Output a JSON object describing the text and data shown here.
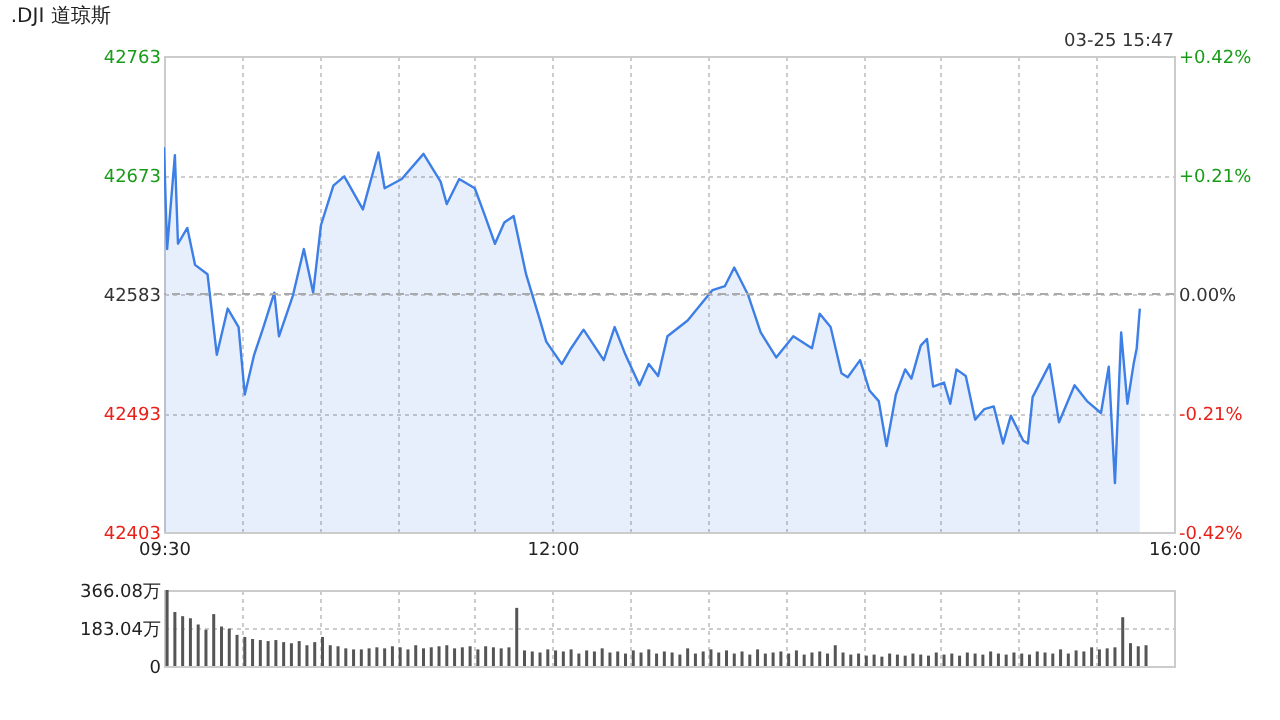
{
  "chart_data": [
    {
      "type": "area",
      "title": ".DJI 道琼斯",
      "annotations": [
        "03-25 15:47"
      ],
      "x": [
        9.5,
        9.52,
        9.57,
        9.59,
        9.65,
        9.7,
        9.78,
        9.84,
        9.91,
        9.98,
        10.02,
        10.08,
        10.14,
        10.21,
        10.24,
        10.33,
        10.4,
        10.46,
        10.51,
        10.59,
        10.66,
        10.78,
        10.88,
        10.92,
        11.03,
        11.17,
        11.28,
        11.32,
        11.4,
        11.5,
        11.56,
        11.63,
        11.69,
        11.75,
        11.83,
        11.92,
        11.96,
        12.06,
        12.12,
        12.2,
        12.33,
        12.4,
        12.47,
        12.56,
        12.62,
        12.68,
        12.74,
        12.87,
        13.03,
        13.11,
        13.17,
        13.26,
        13.34,
        13.44,
        13.55,
        13.67,
        13.72,
        13.79,
        13.86,
        13.9,
        13.98,
        14.04,
        14.1,
        14.15,
        14.21,
        14.27,
        14.31,
        14.37,
        14.41,
        14.45,
        14.52,
        14.56,
        14.6,
        14.66,
        14.72,
        14.78,
        14.84,
        14.9,
        14.95,
        15.03,
        15.06,
        15.09,
        15.2,
        15.26,
        15.36,
        15.44,
        15.53,
        15.58,
        15.62,
        15.66,
        15.7,
        15.74,
        15.76,
        15.78
      ],
      "series": [
        {
          "color": "#3d7fe6",
          "values": [
            42694,
            42617,
            42688,
            42621,
            42633,
            42605,
            42598,
            42537,
            42572,
            42558,
            42507,
            42537,
            42558,
            42584,
            42551,
            42582,
            42617,
            42584,
            42635,
            42665,
            42672,
            42647,
            42690,
            42663,
            42670,
            42689,
            42668,
            42651,
            42670,
            42663,
            42644,
            42621,
            42637,
            42642,
            42598,
            42563,
            42547,
            42530,
            42542,
            42556,
            42533,
            42558,
            42537,
            42514,
            42530,
            42521,
            42551,
            42563,
            42586,
            42589,
            42603,
            42582,
            42554,
            42535,
            42551,
            42542,
            42568,
            42558,
            42523,
            42520,
            42533,
            42510,
            42502,
            42468,
            42507,
            42526,
            42519,
            42544,
            42549,
            42513,
            42516,
            42500,
            42526,
            42521,
            42488,
            42496,
            42498,
            42470,
            42491,
            42472,
            42470,
            42505,
            42530,
            42486,
            42514,
            42502,
            42493,
            42528,
            42440,
            42554,
            42500,
            42530,
            42542,
            42572
          ]
        }
      ],
      "xlim": [
        9.5,
        16
      ],
      "xticks": [
        {
          "value": 9.5,
          "label": "09:30"
        },
        {
          "value": 10,
          "label": null
        },
        {
          "value": 10.5,
          "label": null
        },
        {
          "value": 11,
          "label": null
        },
        {
          "value": 11.5,
          "label": null
        },
        {
          "value": 12,
          "label": "12:00"
        },
        {
          "value": 12.5,
          "label": null
        },
        {
          "value": 13,
          "label": null
        },
        {
          "value": 13.5,
          "label": null
        },
        {
          "value": 14,
          "label": null
        },
        {
          "value": 14.5,
          "label": null
        },
        {
          "value": 15,
          "label": null
        },
        {
          "value": 15.5,
          "label": null
        },
        {
          "value": 16,
          "label": "16:00"
        }
      ],
      "ylim": [
        42403,
        42763
      ],
      "yticks": [
        42403,
        42493,
        42583,
        42673,
        42763
      ],
      "y2lim": [
        -0.42,
        0.42
      ],
      "y2ticks": [
        {
          "value": -0.42,
          "label": "-0.42%"
        },
        {
          "value": -0.21,
          "label": "-0.21%"
        },
        {
          "value": 0,
          "label": "0.00%"
        },
        {
          "value": 0.21,
          "label": "+0.21%"
        },
        {
          "value": 0.42,
          "label": "+0.42%"
        }
      ],
      "ref_lines": [
        {
          "axis": "y2",
          "value": 0,
          "color": "#aaaaaa",
          "line_style": "dashed"
        }
      ],
      "grid": true
    },
    {
      "type": "bar",
      "color": "#555555",
      "x": [
        9.52,
        9.57,
        9.62,
        9.67,
        9.72,
        9.77,
        9.82,
        9.87,
        9.92,
        9.97,
        10.02,
        10.07,
        10.12,
        10.17,
        10.22,
        10.27,
        10.32,
        10.37,
        10.42,
        10.47,
        10.52,
        10.57,
        10.62,
        10.67,
        10.72,
        10.77,
        10.82,
        10.87,
        10.92,
        10.97,
        11.02,
        11.07,
        11.12,
        11.17,
        11.22,
        11.27,
        11.32,
        11.37,
        11.42,
        11.47,
        11.52,
        11.57,
        11.62,
        11.67,
        11.72,
        11.77,
        11.82,
        11.87,
        11.92,
        11.97,
        12.02,
        12.07,
        12.12,
        12.17,
        12.22,
        12.27,
        12.32,
        12.37,
        12.42,
        12.47,
        12.52,
        12.57,
        12.62,
        12.67,
        12.72,
        12.77,
        12.82,
        12.87,
        12.92,
        12.97,
        13.02,
        13.07,
        13.12,
        13.17,
        13.22,
        13.27,
        13.32,
        13.37,
        13.42,
        13.47,
        13.52,
        13.57,
        13.62,
        13.67,
        13.72,
        13.77,
        13.82,
        13.87,
        13.92,
        13.97,
        14.02,
        14.07,
        14.12,
        14.17,
        14.22,
        14.27,
        14.32,
        14.37,
        14.42,
        14.47,
        14.52,
        14.57,
        14.62,
        14.67,
        14.72,
        14.77,
        14.82,
        14.87,
        14.92,
        14.97,
        15.02,
        15.07,
        15.12,
        15.17,
        15.22,
        15.27,
        15.32,
        15.37,
        15.42,
        15.47,
        15.52,
        15.57,
        15.62,
        15.67,
        15.72,
        15.77,
        15.82
      ],
      "values": [
        366,
        260,
        240,
        230,
        200,
        175,
        250,
        190,
        180,
        150,
        140,
        130,
        125,
        120,
        125,
        115,
        110,
        120,
        100,
        115,
        140,
        100,
        95,
        85,
        80,
        80,
        85,
        90,
        85,
        95,
        90,
        80,
        100,
        85,
        90,
        95,
        100,
        85,
        90,
        95,
        80,
        95,
        90,
        85,
        90,
        280,
        75,
        70,
        65,
        80,
        75,
        70,
        80,
        60,
        75,
        70,
        85,
        65,
        70,
        60,
        75,
        65,
        80,
        60,
        70,
        65,
        55,
        85,
        60,
        70,
        80,
        65,
        75,
        60,
        70,
        55,
        80,
        60,
        65,
        70,
        60,
        75,
        55,
        65,
        70,
        60,
        100,
        65,
        55,
        60,
        50,
        55,
        45,
        60,
        55,
        50,
        60,
        55,
        50,
        65,
        55,
        60,
        50,
        65,
        60,
        55,
        70,
        60,
        55,
        65,
        60,
        55,
        70,
        65,
        60,
        80,
        60,
        75,
        70,
        90,
        80,
        85,
        90,
        235,
        110,
        95,
        100
      ],
      "xlim": [
        9.5,
        16
      ],
      "xticks": [
        9.5,
        10,
        10.5,
        11,
        11.5,
        12,
        12.5,
        13,
        13.5,
        14,
        14.5,
        15,
        15.5,
        16
      ],
      "ylim": [
        0,
        366.08
      ],
      "yticks": [
        0,
        {
          "value": 183.04,
          "label": "183.04万"
        },
        {
          "value": 366.08,
          "label": "366.08万"
        }
      ],
      "grid": true,
      "tick_labels": "y"
    }
  ]
}
